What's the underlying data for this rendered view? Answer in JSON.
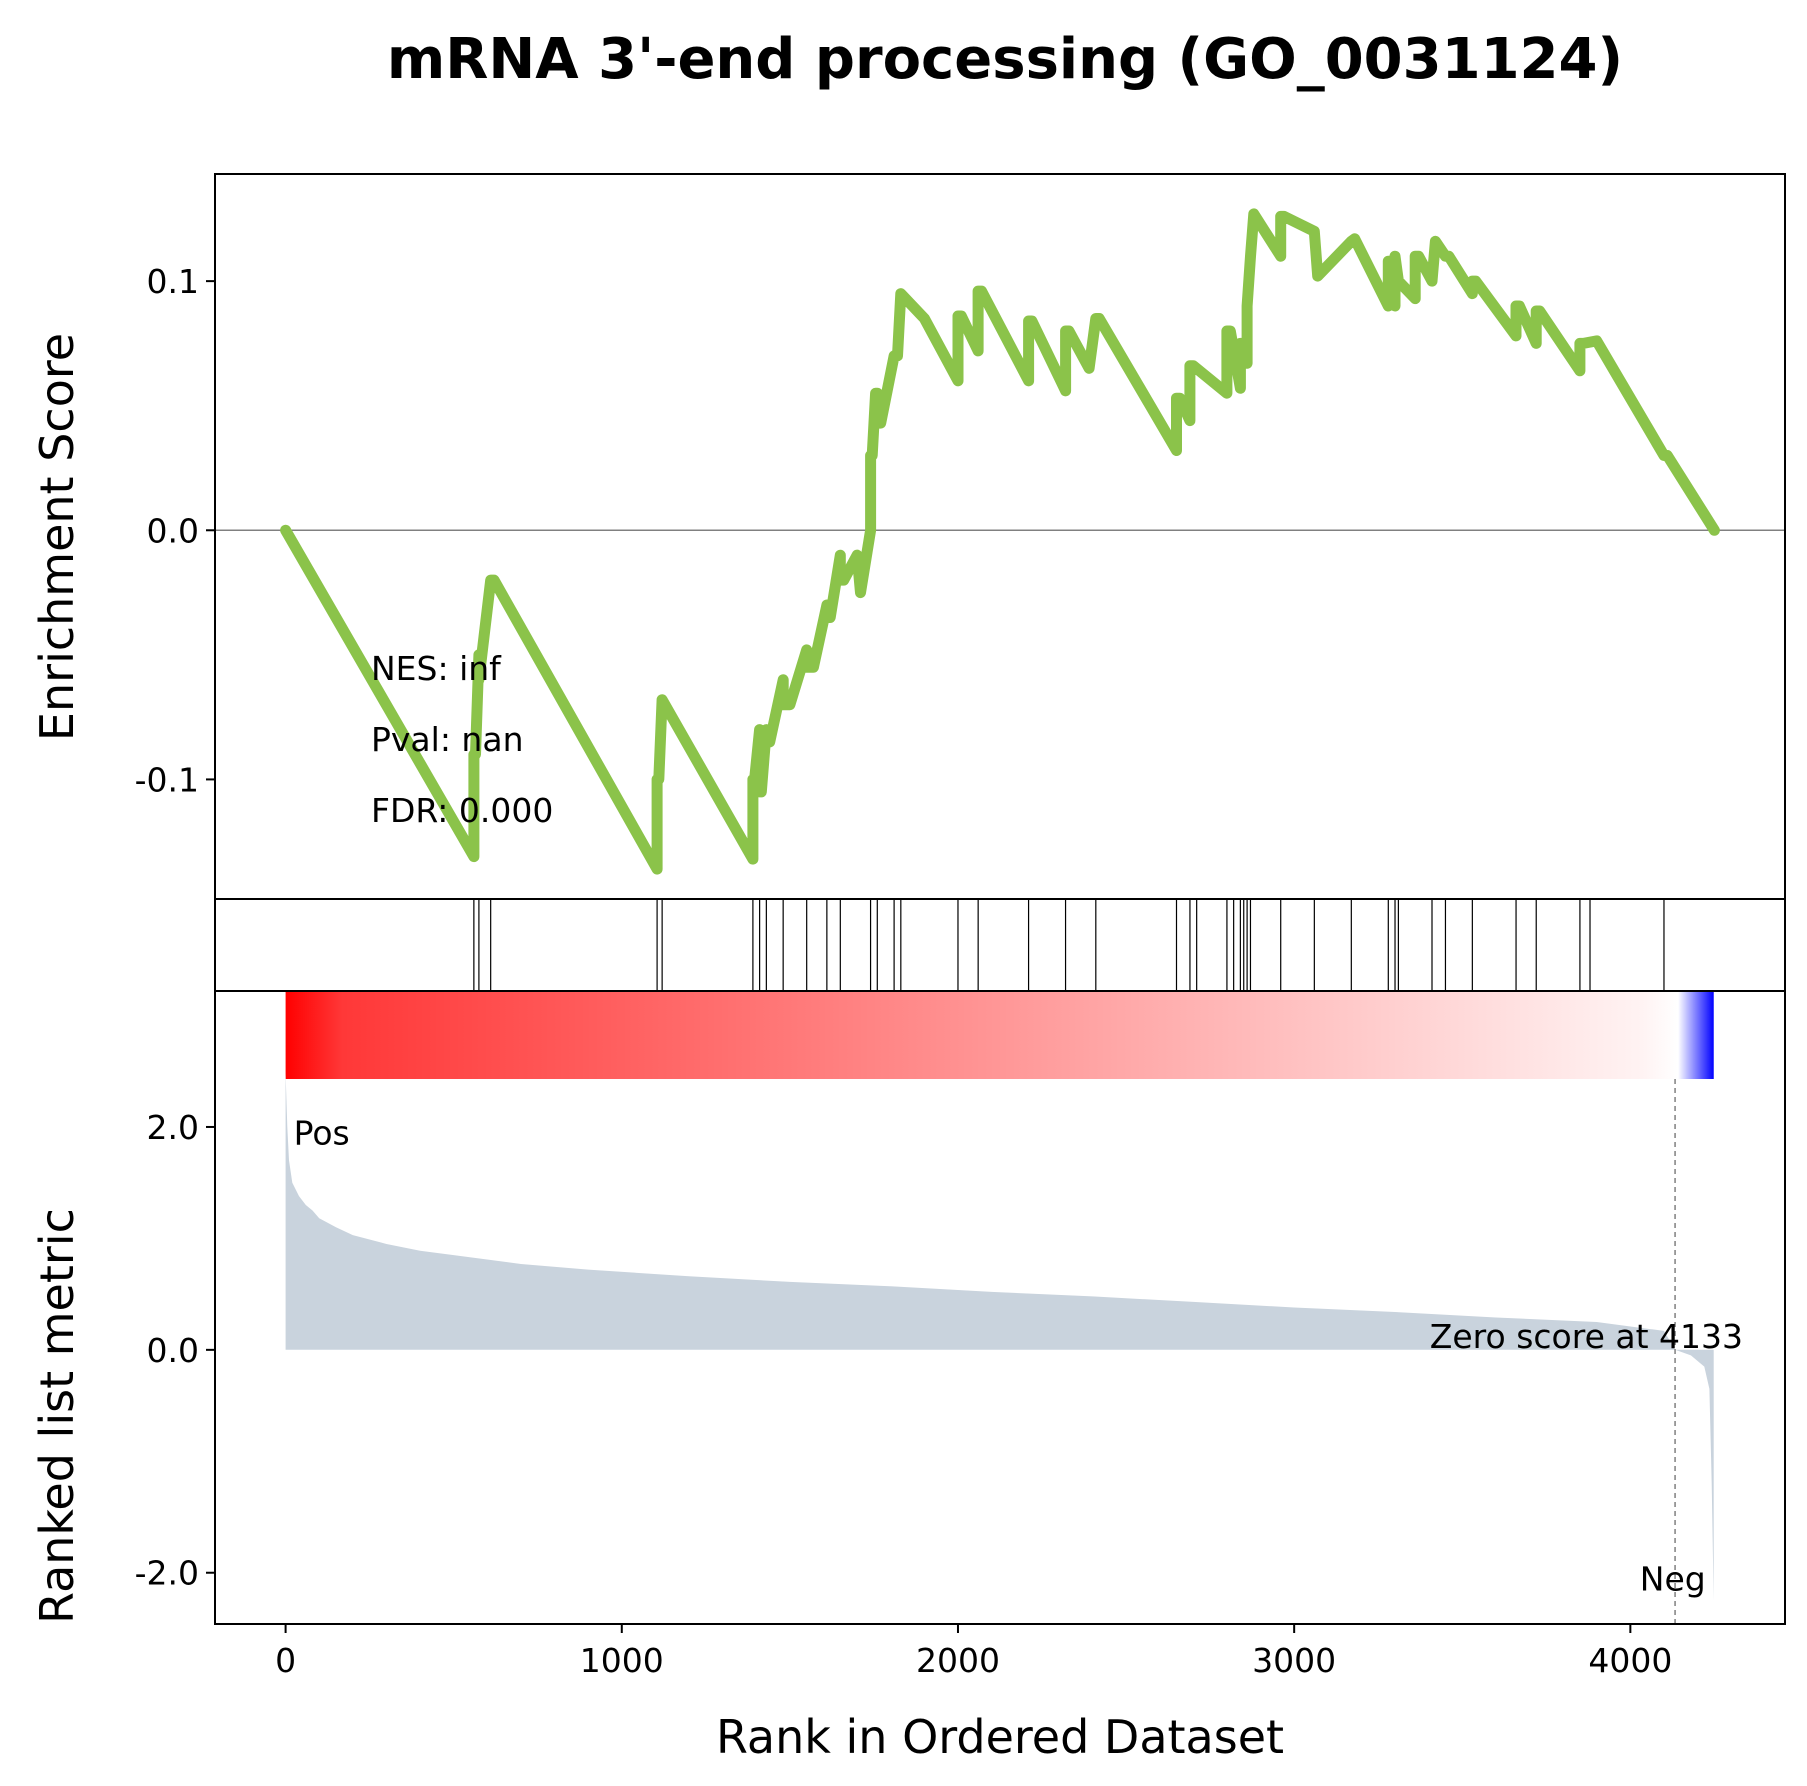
{
  "chart_data": [
    {
      "type": "line",
      "title": "mRNA 3'-end processing (GO_0031124)",
      "ylabel": "Enrichment Score",
      "xlim": [
        -210,
        4460
      ],
      "ylim": [
        -0.148,
        0.143
      ],
      "yticks": [
        0.1,
        0.0,
        -0.1
      ],
      "ytick_labels": [
        "0.1",
        "0.0",
        "-0.1"
      ],
      "zero_line": true,
      "line_color": "#8bc34a",
      "stats": {
        "nes": "NES: inf",
        "pval": "Pval: nan",
        "fdr": "FDR: 0.000"
      },
      "series": [
        {
          "x": [
            0,
            560,
            560,
            565,
            575,
            575,
            610,
            610,
            620,
            1105,
            1105,
            1110,
            1120,
            1390,
            1390,
            1395,
            1410,
            1410,
            1415,
            1430,
            1430,
            1440,
            1480,
            1480,
            1500,
            1550,
            1550,
            1570,
            1610,
            1610,
            1620,
            1650,
            1650,
            1660,
            1700,
            1710,
            1740,
            1740,
            1745,
            1755,
            1760,
            1760,
            1770,
            1810,
            1810,
            1820,
            1830,
            1900,
            2000,
            2000,
            2010,
            2060,
            2060,
            2070,
            2210,
            2210,
            2220,
            2320,
            2320,
            2330,
            2390,
            2410,
            2420,
            2650,
            2650,
            2660,
            2690,
            2690,
            2700,
            2800,
            2800,
            2810,
            2840,
            2840,
            2850,
            2860,
            2860,
            2870,
            2880,
            2960,
            2960,
            2970,
            3060,
            3070,
            3170,
            3170,
            3180,
            3280,
            3280,
            3290,
            3300,
            3300,
            3310,
            3360,
            3360,
            3370,
            3410,
            3410,
            3420,
            3450,
            3450,
            3460,
            3530,
            3530,
            3540,
            3660,
            3660,
            3670,
            3720,
            3720,
            3730,
            3850,
            3850,
            3860,
            3900,
            4100,
            4110,
            4250
          ],
          "y": [
            0.0,
            -0.131,
            -0.09,
            -0.09,
            -0.05,
            -0.06,
            -0.02,
            -0.02,
            -0.02,
            -0.136,
            -0.1,
            -0.1,
            -0.068,
            -0.132,
            -0.1,
            -0.1,
            -0.08,
            -0.105,
            -0.105,
            -0.08,
            -0.085,
            -0.085,
            -0.06,
            -0.07,
            -0.07,
            -0.048,
            -0.055,
            -0.055,
            -0.03,
            -0.035,
            -0.035,
            -0.01,
            -0.02,
            -0.02,
            -0.01,
            -0.025,
            0.0,
            0.03,
            0.03,
            0.055,
            0.055,
            0.043,
            0.043,
            0.07,
            0.07,
            0.07,
            0.095,
            0.085,
            0.06,
            0.086,
            0.086,
            0.072,
            0.096,
            0.096,
            0.06,
            0.084,
            0.084,
            0.056,
            0.08,
            0.08,
            0.065,
            0.085,
            0.085,
            0.032,
            0.053,
            0.053,
            0.044,
            0.066,
            0.066,
            0.055,
            0.08,
            0.08,
            0.057,
            0.075,
            0.075,
            0.067,
            0.09,
            0.11,
            0.127,
            0.11,
            0.126,
            0.126,
            0.12,
            0.102,
            0.116,
            0.116,
            0.117,
            0.09,
            0.108,
            0.108,
            0.09,
            0.11,
            0.1,
            0.093,
            0.11,
            0.11,
            0.1,
            0.1,
            0.116,
            0.11,
            0.11,
            0.11,
            0.095,
            0.1,
            0.1,
            0.078,
            0.09,
            0.09,
            0.075,
            0.088,
            0.088,
            0.064,
            0.075,
            0.075,
            0.076,
            0.03,
            0.03,
            0.0
          ]
        }
      ]
    },
    {
      "type": "scatter",
      "marker": "vertical-line",
      "description_hits": "gene set members",
      "hits": [
        560,
        575,
        610,
        1105,
        1120,
        1390,
        1410,
        1430,
        1480,
        1550,
        1610,
        1650,
        1740,
        1760,
        1810,
        1830,
        2000,
        2060,
        2210,
        2320,
        2410,
        2650,
        2690,
        2710,
        2800,
        2820,
        2840,
        2850,
        2860,
        2870,
        2960,
        3060,
        3170,
        3280,
        3300,
        3310,
        3410,
        3450,
        3530,
        3660,
        3720,
        3850,
        3880,
        4100
      ]
    },
    {
      "type": "area",
      "ylabel": "Ranked list metric",
      "xlabel": "Rank in Ordered Dataset",
      "xlim": [
        -210,
        4460
      ],
      "ylim": [
        -2.46,
        3.22
      ],
      "xticks": [
        0,
        1000,
        2000,
        3000,
        4000
      ],
      "xtick_labels": [
        "0",
        "1000",
        "2000",
        "3000",
        "4000"
      ],
      "yticks": [
        2.0,
        0.0,
        -2.0
      ],
      "ytick_labels": [
        "2.0",
        "0.0",
        "-2.0"
      ],
      "fill_color": "#c9d3dd",
      "colorbar": {
        "from": "#ff0000",
        "to": "#ffffff",
        "end": "#0000ff",
        "zero_rank": 4133
      },
      "zero_rank": 4133,
      "zero_label": "Zero score at 4133",
      "pos_label": "Pos",
      "neg_label": "Neg",
      "pos_color": "#ff0000",
      "neg_color": "#0000ff",
      "series": [
        {
          "x": [
            0,
            5,
            10,
            20,
            40,
            60,
            80,
            100,
            150,
            200,
            300,
            400,
            500,
            700,
            900,
            1200,
            1500,
            1800,
            2100,
            2400,
            2700,
            3000,
            3300,
            3600,
            3900,
            4100,
            4133,
            4180,
            4220,
            4235,
            4242,
            4248
          ],
          "y": [
            2.48,
            2.0,
            1.7,
            1.5,
            1.38,
            1.3,
            1.25,
            1.18,
            1.1,
            1.03,
            0.95,
            0.89,
            0.85,
            0.77,
            0.72,
            0.66,
            0.61,
            0.57,
            0.52,
            0.48,
            0.43,
            0.38,
            0.34,
            0.29,
            0.25,
            0.17,
            0.0,
            -0.05,
            -0.15,
            -0.35,
            -1.2,
            -2.25
          ]
        }
      ]
    }
  ]
}
